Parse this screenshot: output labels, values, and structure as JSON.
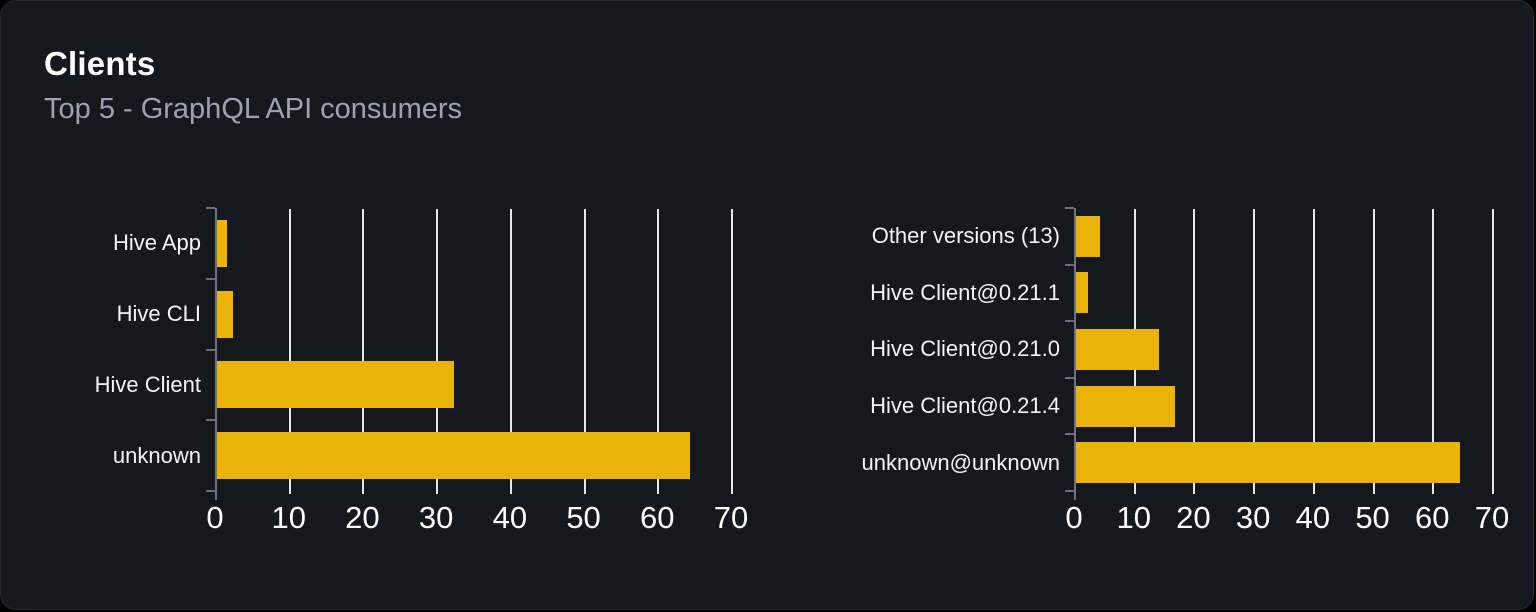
{
  "card": {
    "title": "Clients",
    "subtitle": "Top 5 - GraphQL API consumers"
  },
  "colors": {
    "page_background": "#000000",
    "card_background": "#16181d",
    "bar": "#eab308",
    "gridline": "#e3e6ea",
    "axis": "#6b7280",
    "title_text": "#ffffff",
    "subtitle_text": "#9ca3af",
    "category_label_text": "#f3f4f6",
    "tick_label_text": "#ffffff"
  },
  "chart_data": [
    {
      "type": "bar",
      "orientation": "horizontal",
      "title": "",
      "categories": [
        "Hive App",
        "Hive CLI",
        "Hive Client",
        "unknown"
      ],
      "values": [
        1.4,
        2.2,
        32.1,
        64.2
      ],
      "xticks": [
        0,
        10,
        20,
        30,
        40,
        50,
        60,
        70
      ],
      "xlim": [
        0,
        70
      ],
      "xlabel": "",
      "ylabel": "",
      "grid": true,
      "legend": false,
      "bar_color": "#eab308"
    },
    {
      "type": "bar",
      "orientation": "horizontal",
      "title": "",
      "categories": [
        "Other versions (13)",
        "Hive Client@0.21.1",
        "Hive Client@0.21.0",
        "Hive Client@0.21.4",
        "unknown@unknown"
      ],
      "values": [
        4.0,
        2.0,
        13.9,
        16.5,
        64.3
      ],
      "xticks": [
        0,
        10,
        20,
        30,
        40,
        50,
        60,
        70
      ],
      "xlim": [
        0,
        70
      ],
      "xlabel": "",
      "ylabel": "",
      "grid": true,
      "legend": false,
      "bar_color": "#eab308"
    }
  ]
}
